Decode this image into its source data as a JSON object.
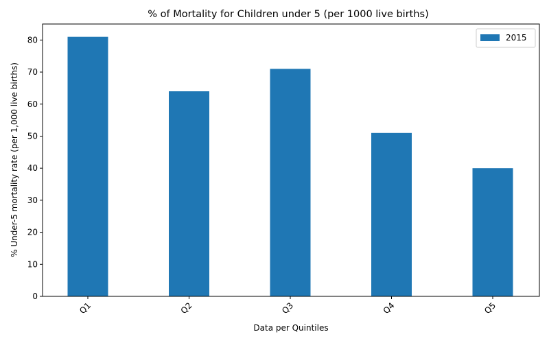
{
  "chart_data": {
    "type": "bar",
    "title": "% of Mortality for Children under 5 (per 1000 live births)",
    "xlabel": "Data per Quintiles",
    "ylabel": "% Under-5 mortality rate (per 1,000 live births)",
    "categories": [
      "Q1",
      "Q2",
      "Q3",
      "Q4",
      "Q5"
    ],
    "series": [
      {
        "name": "2015",
        "values": [
          81,
          64,
          71,
          51,
          40
        ],
        "color": "#1f77b4"
      }
    ],
    "ylim": [
      0,
      85
    ],
    "yticks": [
      0,
      10,
      20,
      30,
      40,
      50,
      60,
      70,
      80
    ],
    "legend_position": "top-right",
    "grid": false
  }
}
